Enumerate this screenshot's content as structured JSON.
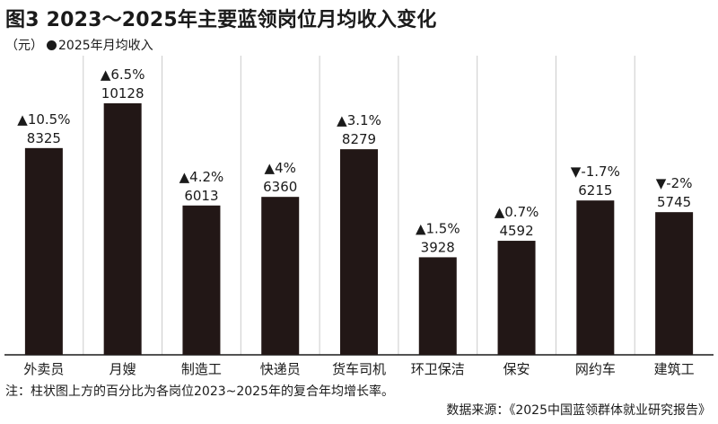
{
  "header": {
    "title": "图3 2023～2025年主要蓝领岗位月均收入变化",
    "unit": "（元）",
    "legend_label": "2025年月均收入"
  },
  "footer": {
    "note": "注：柱状图上方的百分比为各岗位2023~2025年的复合年均增长率。",
    "source": "数据来源：《2025中国蓝领群体就业研究报告》"
  },
  "colors": {
    "bar": "#221716",
    "text": "#1a1a1a",
    "gridline": "#cccccc"
  },
  "chart_data": {
    "type": "bar",
    "title": "图3 2023～2025年主要蓝领岗位月均收入变化",
    "ylabel": "（元）",
    "ylim": [
      0,
      11000
    ],
    "grid": "vertical separators",
    "legend": "top-left",
    "categories": [
      "外卖员",
      "月嫂",
      "制造工",
      "快递员",
      "货车司机",
      "环卫保洁",
      "保安",
      "网约车",
      "建筑工"
    ],
    "series": [
      {
        "name": "2025年月均收入",
        "values": [
          8325,
          10128,
          6013,
          6360,
          8279,
          3928,
          4592,
          6215,
          5745
        ]
      }
    ],
    "growth_labels": [
      "▲10.5%",
      "▲6.5%",
      "▲4.2%",
      "▲4%",
      "▲3.1%",
      "▲1.5%",
      "▲0.7%",
      "▼-1.7%",
      "▼-2%"
    ]
  }
}
